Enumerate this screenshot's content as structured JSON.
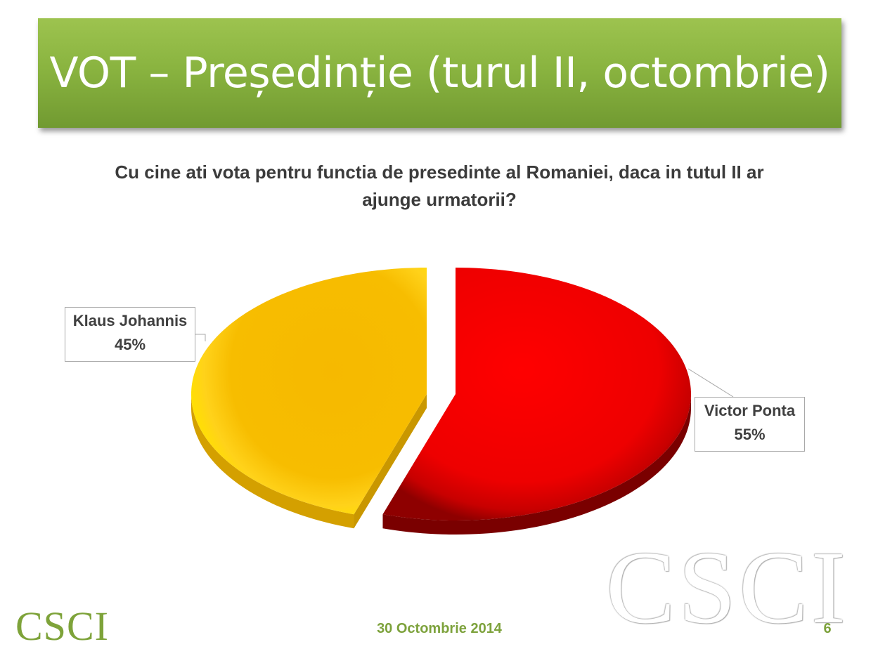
{
  "slide": {
    "title": "VOT – Președinție (turul II, octombrie)",
    "question": "Cu cine ati vota pentru functia de presedinte al Romaniei, daca in tutul II ar ajunge urmatorii?",
    "footer_date": "30 Octombrie 2014",
    "page_number": "6",
    "logo_text": "CSCI",
    "watermark_text": "CSCI",
    "colors": {
      "banner": "#8ab440",
      "footer": "#7da23c"
    }
  },
  "chart_data": {
    "type": "pie",
    "title": "Cu cine ati vota pentru functia de presedinte al Romaniei, daca in tutul II ar ajunge urmatorii?",
    "slices": [
      {
        "label": "Victor Ponta",
        "value": 55,
        "value_label": "55%",
        "color": "#ee0000",
        "exploded": true
      },
      {
        "label": "Klaus Johannis",
        "value": 45,
        "value_label": "45%",
        "color": "#f6bd00",
        "exploded": true
      }
    ],
    "style": "3d"
  }
}
